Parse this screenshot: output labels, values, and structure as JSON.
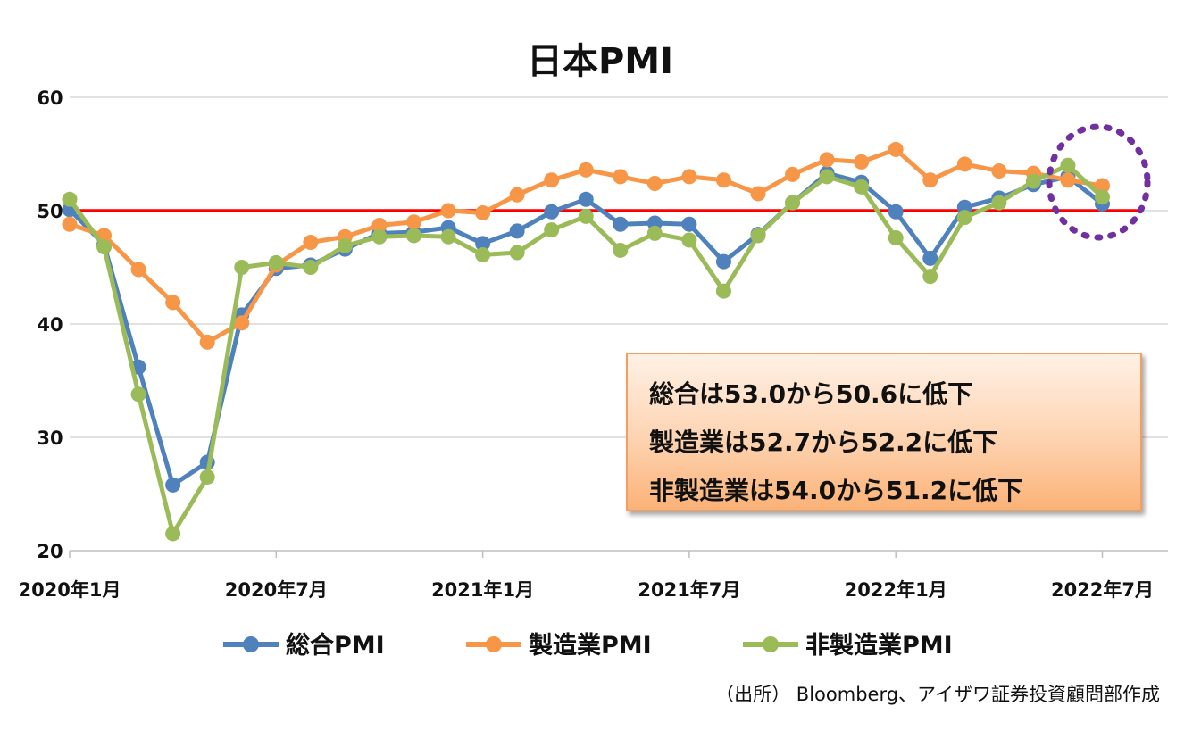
{
  "chart_data": {
    "type": "line",
    "title": "日本PMI",
    "x": [
      "2020-01",
      "2020-02",
      "2020-03",
      "2020-04",
      "2020-05",
      "2020-06",
      "2020-07",
      "2020-08",
      "2020-09",
      "2020-10",
      "2020-11",
      "2020-12",
      "2021-01",
      "2021-02",
      "2021-03",
      "2021-04",
      "2021-05",
      "2021-06",
      "2021-07",
      "2021-08",
      "2021-09",
      "2021-10",
      "2021-11",
      "2021-12",
      "2022-01",
      "2022-02",
      "2022-03",
      "2022-04",
      "2022-05",
      "2022-06",
      "2022-07"
    ],
    "x_tick_labels": [
      "2020年1月",
      "2020年7月",
      "2021年1月",
      "2021年7月",
      "2022年1月",
      "2022年7月"
    ],
    "y_ticks": [
      20,
      30,
      40,
      50,
      60
    ],
    "ylim": [
      20,
      60
    ],
    "grid": true,
    "legend_position": "bottom",
    "series": [
      {
        "name": "総合PMI",
        "color": "#4f81bd",
        "values": [
          50.1,
          47.0,
          36.2,
          25.8,
          27.8,
          40.8,
          44.9,
          45.2,
          46.6,
          48.0,
          48.1,
          48.5,
          47.1,
          48.2,
          49.9,
          51.0,
          48.8,
          48.9,
          48.8,
          45.5,
          47.9,
          50.7,
          53.3,
          52.5,
          49.9,
          45.8,
          50.3,
          51.1,
          52.3,
          53.0,
          50.6
        ]
      },
      {
        "name": "製造業PMI",
        "color": "#f79646",
        "values": [
          48.8,
          47.8,
          44.8,
          41.9,
          38.4,
          40.1,
          45.2,
          47.2,
          47.7,
          48.7,
          49.0,
          50.0,
          49.8,
          51.4,
          52.7,
          53.6,
          53.0,
          52.4,
          53.0,
          52.7,
          51.5,
          53.2,
          54.5,
          54.3,
          55.4,
          52.7,
          54.1,
          53.5,
          53.3,
          52.7,
          52.2
        ]
      },
      {
        "name": "非製造業PMI",
        "color": "#9bbb59",
        "values": [
          51.0,
          46.8,
          33.8,
          21.5,
          26.5,
          45.0,
          45.4,
          45.0,
          46.9,
          47.7,
          47.8,
          47.7,
          46.1,
          46.3,
          48.3,
          49.5,
          46.5,
          48.0,
          47.4,
          42.9,
          47.8,
          50.7,
          53.0,
          52.1,
          47.6,
          44.2,
          49.4,
          50.7,
          52.6,
          54.0,
          51.2
        ]
      }
    ],
    "reference_line": {
      "value": 50,
      "color": "#ff0000"
    },
    "highlight_marker_color": "#7030a0"
  },
  "annotation": {
    "lines": [
      "総合は53.0から50.6に低下",
      "製造業は52.7から52.2に低下",
      "非製造業は54.0から51.2に低下"
    ]
  },
  "source_note": "（出所） Bloomberg、アイザワ証券投資顧問部作成"
}
